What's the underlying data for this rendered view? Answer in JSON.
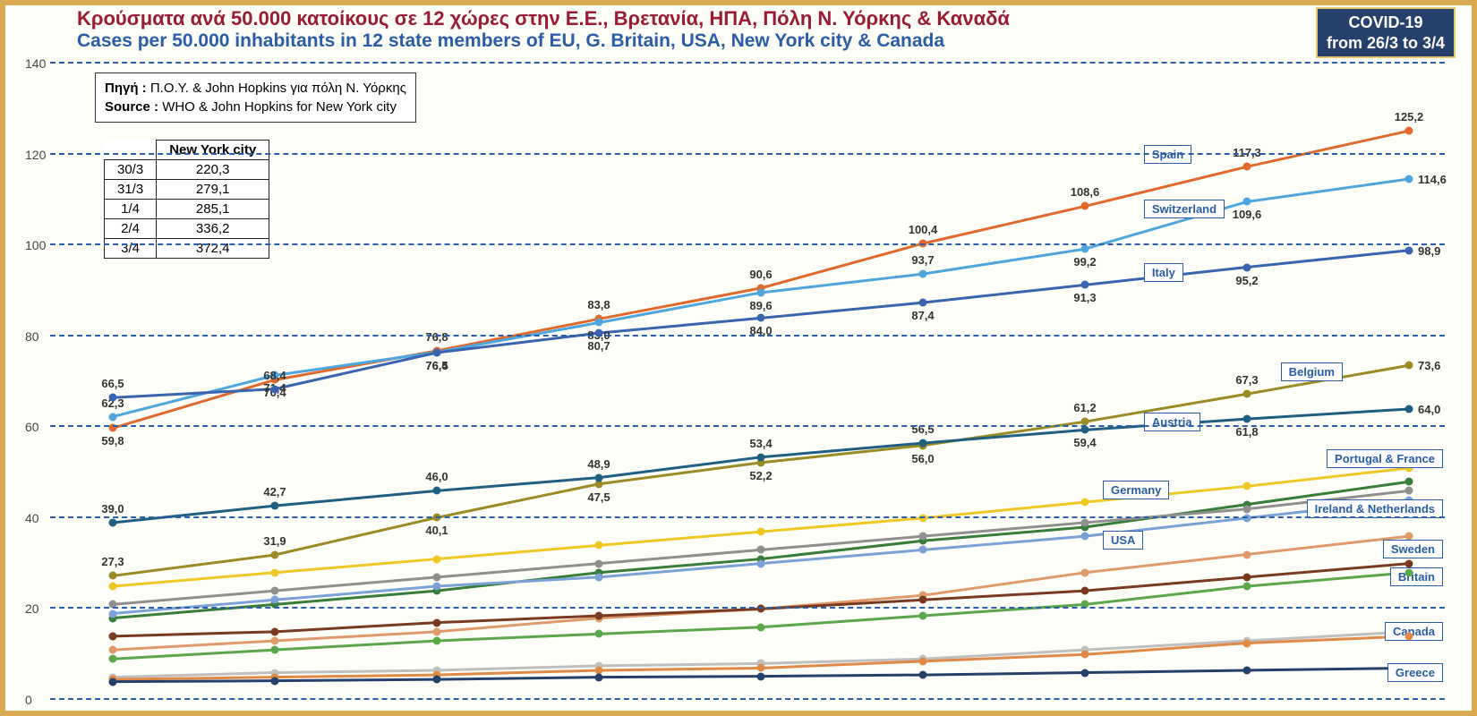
{
  "titles": {
    "gr": "Κρούσματα ανά 50.000 κατοίκους σε 12 χώρες στην Ε.Ε., Βρετανία, ΗΠΑ, Πόλη Ν. Υόρκης & Καναδά",
    "en": "Cases per 50.000 inhabitants in 12 state members of EU, G. Britain, USA, New York city & Canada"
  },
  "badge": {
    "l1": "COVID-19",
    "l2": "from 26/3 to 3/4"
  },
  "source": {
    "gr_label": "Πηγή :",
    "gr_text": "Π.Ο.Υ. & John Hopkins για πόλη Ν. Υόρκης",
    "en_label": "Source :",
    "en_text": "WHO & John Hopkins for New York city"
  },
  "ny_table": {
    "header": "New York city",
    "rows": [
      [
        "30/3",
        "220,3"
      ],
      [
        "31/3",
        "279,1"
      ],
      [
        "1/4",
        "285,1"
      ],
      [
        "2/4",
        "336,2"
      ],
      [
        "3/4",
        "372,4"
      ]
    ]
  },
  "chart": {
    "ylim": [
      0,
      140
    ],
    "yticks": [
      0,
      20,
      40,
      60,
      80,
      100,
      120,
      140
    ],
    "x_count": 9,
    "grid_color": "#2b5fa8",
    "series": [
      {
        "name": "Spain",
        "color": "#e06a2b",
        "y": [
          59.8,
          70.4,
          76.8,
          83.8,
          90.6,
          100.4,
          108.6,
          117.3,
          125.2
        ],
        "labels": [
          [
            0,
            "59,8",
            "below"
          ],
          [
            1,
            "70,4",
            "below"
          ],
          [
            2,
            "76,8",
            "above"
          ],
          [
            3,
            "83,8",
            "above"
          ],
          [
            4,
            "90,6",
            "above"
          ],
          [
            5,
            "100,4",
            "above"
          ],
          [
            6,
            "108,6",
            "above"
          ],
          [
            7,
            "117,3",
            "above"
          ],
          [
            8,
            "125,2",
            "above"
          ]
        ],
        "legend": {
          "x_pct": 78,
          "y": 120
        }
      },
      {
        "name": "Switzerland",
        "color": "#4ea6dd",
        "y": [
          62.3,
          71.4,
          76.5,
          83.0,
          89.6,
          93.7,
          99.2,
          109.6,
          114.6
        ],
        "labels": [
          [
            0,
            "62,3",
            "above"
          ],
          [
            1,
            "71,4",
            "below"
          ],
          [
            2,
            "76,5",
            "below"
          ],
          [
            3,
            "83,0",
            "below"
          ],
          [
            4,
            "89,6",
            "below"
          ],
          [
            5,
            "93,7",
            "above"
          ],
          [
            6,
            "99,2",
            "below"
          ],
          [
            7,
            "109,6",
            "below"
          ],
          [
            8,
            "114,6",
            "right"
          ]
        ],
        "legend": {
          "x_pct": 78,
          "y": 108
        }
      },
      {
        "name": "Italy",
        "color": "#3864b0",
        "y": [
          66.5,
          68.4,
          76.4,
          80.7,
          84.0,
          87.4,
          91.3,
          95.2,
          98.9
        ],
        "labels": [
          [
            0,
            "66,5",
            "above"
          ],
          [
            1,
            "68,4",
            "above"
          ],
          [
            2,
            "76,4",
            "below"
          ],
          [
            3,
            "80,7",
            "below"
          ],
          [
            4,
            "84,0",
            "below"
          ],
          [
            5,
            "87,4",
            "below"
          ],
          [
            6,
            "91,3",
            "below"
          ],
          [
            7,
            "95,2",
            "below"
          ],
          [
            8,
            "98,9",
            "right"
          ]
        ],
        "legend": {
          "x_pct": 78,
          "y": 94
        }
      },
      {
        "name": "Belgium",
        "color": "#9a8b25",
        "y": [
          27.3,
          31.9,
          40.1,
          47.5,
          52.2,
          56.0,
          61.2,
          67.3,
          73.6
        ],
        "labels": [
          [
            0,
            "27,3",
            "above"
          ],
          [
            1,
            "31,9",
            "above"
          ],
          [
            2,
            "40,1",
            "below"
          ],
          [
            3,
            "47,5",
            "below"
          ],
          [
            4,
            "52,2",
            "below"
          ],
          [
            5,
            "56,0",
            "below"
          ],
          [
            6,
            "61,2",
            "above"
          ],
          [
            7,
            "67,3",
            "above"
          ],
          [
            8,
            "73,6",
            "right"
          ]
        ],
        "legend": {
          "x_pct": 88,
          "y": 72
        }
      },
      {
        "name": "Austria",
        "color": "#1f5f82",
        "y": [
          39.0,
          42.7,
          46.0,
          48.9,
          53.4,
          56.5,
          59.4,
          61.8,
          64.0
        ],
        "labels": [
          [
            0,
            "39,0",
            "above"
          ],
          [
            1,
            "42,7",
            "above"
          ],
          [
            2,
            "46,0",
            "above"
          ],
          [
            3,
            "48,9",
            "above"
          ],
          [
            4,
            "53,4",
            "above"
          ],
          [
            5,
            "56,5",
            "above"
          ],
          [
            6,
            "59,4",
            "below"
          ],
          [
            7,
            "61,8",
            "below"
          ],
          [
            8,
            "64,0",
            "right"
          ]
        ],
        "legend": {
          "x_pct": 78,
          "y": 61
        }
      },
      {
        "name": "Germany",
        "color": "#f0c826",
        "y": [
          25,
          28,
          31,
          34,
          37,
          40,
          43.5,
          47,
          51
        ],
        "labels": [],
        "legend": {
          "x_pct": 75,
          "y": 46
        }
      },
      {
        "name": "Portugal & France",
        "color": "#377e3a",
        "y": [
          18,
          21,
          24,
          28,
          31,
          35,
          38,
          43,
          48
        ],
        "labels": [],
        "legend": {
          "x_pct": 95,
          "y": 53,
          "right": true
        }
      },
      {
        "name": "Ireland & Netherlands",
        "color": "#7aa2d8",
        "y": [
          19,
          22,
          25,
          27,
          30,
          33,
          36,
          40,
          44
        ],
        "labels": [],
        "legend": {
          "x_pct": 91,
          "y": 42,
          "right": true
        }
      },
      {
        "name": "USA",
        "color": "#8f8f8f",
        "y": [
          21,
          24,
          27,
          30,
          33,
          36,
          39,
          42,
          46
        ],
        "labels": [],
        "legend": {
          "x_pct": 75,
          "y": 35
        }
      },
      {
        "name": "Sweden",
        "color": "#e09a6a",
        "y": [
          11,
          13,
          15,
          18,
          20,
          23,
          28,
          32,
          36
        ],
        "labels": [],
        "legend": {
          "x_pct": 95,
          "y": 33,
          "right": true
        }
      },
      {
        "name": "Britain",
        "color": "#7a3a1f",
        "y": [
          14,
          15,
          17,
          18.5,
          20,
          22,
          24,
          27,
          30
        ],
        "labels": [],
        "legend": {
          "x_pct": 95,
          "y": 27,
          "right": true
        }
      },
      {
        "name": "SwedenLine2",
        "hidden_legend": true,
        "color": "#5aa84a",
        "y": [
          9,
          11,
          13,
          14.5,
          16,
          18.5,
          21,
          25,
          28
        ],
        "labels": []
      },
      {
        "name": "Canada",
        "color": "#bfbfbf",
        "y": [
          5,
          6,
          6.5,
          7.5,
          8,
          9,
          11,
          13,
          15
        ],
        "labels": [],
        "legend": {
          "x_pct": 95,
          "y": 15,
          "right": true
        }
      },
      {
        "name": "CanadaLine2",
        "hidden_legend": true,
        "color": "#e08a45",
        "y": [
          4.5,
          5,
          5.5,
          6.5,
          7,
          8.5,
          10,
          12.5,
          14
        ],
        "labels": []
      },
      {
        "name": "Greece",
        "color": "#25406b",
        "y": [
          4,
          4.2,
          4.5,
          5,
          5.2,
          5.5,
          6,
          6.5,
          7
        ],
        "labels": [],
        "legend": {
          "x_pct": 95,
          "y": 6,
          "right": true
        }
      }
    ]
  }
}
